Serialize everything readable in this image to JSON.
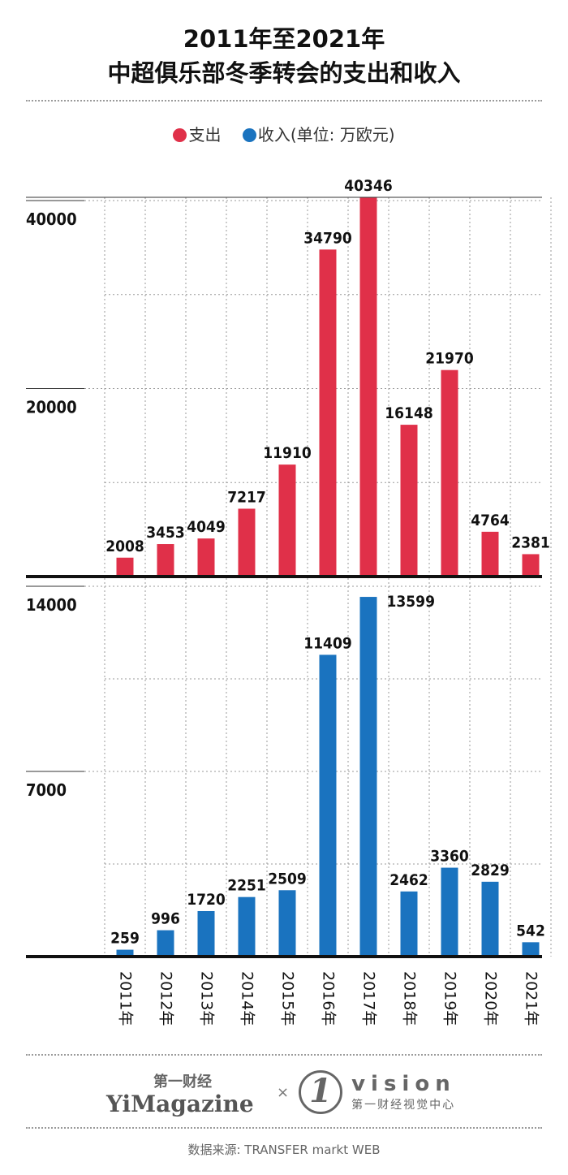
{
  "title": {
    "line1": "2011年至2021年",
    "line2": "中超俱乐部冬季转会的支出和收入"
  },
  "legend": {
    "expense": "支出",
    "income": "收入(单位: 万欧元)"
  },
  "colors": {
    "expense": "#E03049",
    "income": "#1A73BF",
    "axis": "#111111",
    "grid": "#9a9a9a"
  },
  "chart_data": [
    {
      "type": "bar",
      "series_name": "支出",
      "categories": [
        "2011年",
        "2012年",
        "2013年",
        "2014年",
        "2015年",
        "2016年",
        "2017年",
        "2018年",
        "2019年",
        "2020年",
        "2021年"
      ],
      "values": [
        2008,
        3453,
        4049,
        7217,
        11910,
        34790,
        40346,
        16148,
        21970,
        4764,
        2381
      ],
      "yticks": [
        20000,
        40000
      ],
      "ylim": [
        0,
        40346
      ],
      "unit": "万欧元"
    },
    {
      "type": "bar",
      "series_name": "收入",
      "categories": [
        "2011年",
        "2012年",
        "2013年",
        "2014年",
        "2015年",
        "2016年",
        "2017年",
        "2018年",
        "2019年",
        "2020年",
        "2021年"
      ],
      "values": [
        259,
        996,
        1720,
        2251,
        2509,
        11409,
        13599,
        2462,
        3360,
        2829,
        542
      ],
      "yticks": [
        7000,
        14000
      ],
      "ylim": [
        0,
        14000
      ],
      "unit": "万欧元"
    }
  ],
  "footer": {
    "brand_cn": "第一财经",
    "brand_en": "YiMagazine",
    "times": "×",
    "vision_mark": "1",
    "vision_word": "vision",
    "vision_sub": "第一财经视觉中心",
    "source": "数据来源: TRANSFER markt WEB"
  }
}
